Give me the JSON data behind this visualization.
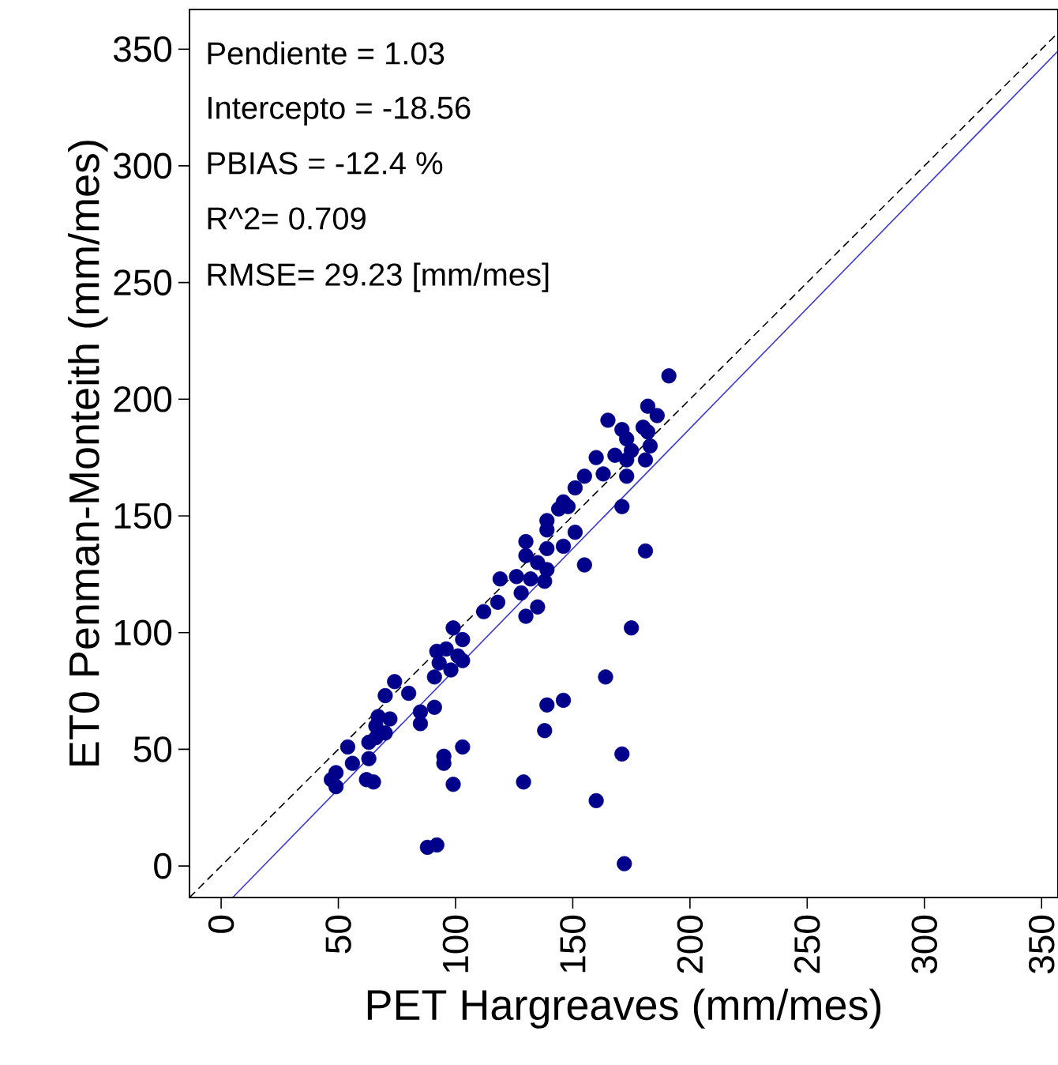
{
  "chart_data": {
    "type": "scatter",
    "xlabel": "PET Hargreaves (mm/mes)",
    "ylabel": "ET0 Penman-Monteith (mm/mes)",
    "xlim": [
      -13.5,
      357
    ],
    "ylim": [
      -13.5,
      367
    ],
    "xticks": [
      0,
      50,
      100,
      150,
      200,
      250,
      300,
      350
    ],
    "yticks": [
      0,
      50,
      100,
      150,
      200,
      250,
      300,
      350
    ],
    "grid": false,
    "annotations": [
      "Pendiente = 1.03",
      "Intercepto = -18.56",
      "PBIAS = -12.4 %",
      "R^2= 0.709",
      "RMSE= 29.23 [mm/mes]"
    ],
    "series": [
      {
        "color": "#00008b",
        "marker": "circle",
        "x": [
          191,
          165,
          182,
          186,
          180,
          171,
          173,
          182,
          183,
          175,
          168,
          173,
          181,
          160,
          173,
          163,
          155,
          151,
          146,
          148,
          144,
          171,
          181,
          139,
          139,
          151,
          146,
          130,
          139,
          130,
          135,
          139,
          155,
          126,
          132,
          138,
          119,
          128,
          135,
          130,
          112,
          118,
          99,
          175,
          103,
          92,
          96,
          101,
          103,
          93,
          98,
          91,
          164,
          74,
          70,
          80,
          146,
          139,
          85,
          91,
          67,
          72,
          85,
          66,
          70,
          138,
          66,
          63,
          54,
          103,
          95,
          95,
          171,
          56,
          63,
          49,
          47,
          49,
          62,
          65,
          99,
          129,
          160,
          88,
          92,
          172
        ],
        "values": [
          210,
          191,
          197,
          193,
          188,
          187,
          183,
          186,
          180,
          178,
          176,
          174,
          174,
          175,
          167,
          168,
          167,
          162,
          156,
          154,
          153,
          154,
          135,
          148,
          144,
          143,
          137,
          139,
          136,
          133,
          130,
          127,
          129,
          124,
          123,
          122,
          123,
          117,
          111,
          107,
          109,
          113,
          102,
          102,
          97,
          92,
          93,
          90,
          88,
          87,
          84,
          81,
          81,
          79,
          73,
          74,
          71,
          69,
          66,
          68,
          64,
          63,
          61,
          60,
          57,
          58,
          55,
          53,
          51,
          51,
          47,
          44,
          48,
          44,
          46,
          40,
          37,
          34,
          37,
          36,
          35,
          36,
          28,
          8,
          9,
          1
        ]
      },
      {
        "type": "line",
        "color": "#3a3ad0",
        "marker": "none",
        "line_style": "solid",
        "x": [
          5,
          357
        ],
        "values": [
          -13.4,
          349.2
        ]
      },
      {
        "type": "line",
        "color": "#000000",
        "marker": "none",
        "line_style": "dashed",
        "x": [
          -13.5,
          357
        ],
        "values": [
          -13.5,
          357
        ]
      }
    ]
  }
}
